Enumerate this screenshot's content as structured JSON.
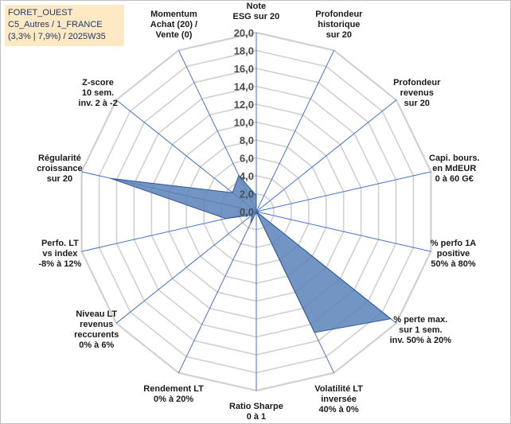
{
  "info": {
    "line1": "FORET_OUEST",
    "line2": "C5_Autres / 1_FRANCE",
    "line3": "(3,3% | 7,9%) / 2025W35"
  },
  "chart_data": {
    "type": "radar",
    "title": "",
    "rlim": [
      0,
      20
    ],
    "ticks": [
      "0,0",
      "2,0",
      "4,0",
      "6,0",
      "8,0",
      "10,0",
      "12,0",
      "14,0",
      "16,0",
      "18,0",
      "20,0"
    ],
    "grid": true,
    "fill_color": "#5a82b8",
    "line_color": "#2f5597",
    "axis_color": "#4472c4",
    "grid_color": "#d0d0d0",
    "axes": [
      {
        "label": [
          "Note",
          "ESG sur 20"
        ],
        "value": 1.8
      },
      {
        "label": [
          "Profondeur",
          "historique",
          "sur 20"
        ],
        "value": 0.0
      },
      {
        "label": [
          "Profondeur",
          "revenus",
          "sur 20"
        ],
        "value": 0.0
      },
      {
        "label": [
          "Capi. bours.",
          "en MdEUR",
          "0 à 60 G€"
        ],
        "value": 0.0
      },
      {
        "label": [
          "% perfo 1A",
          "positive",
          "50% à 80%"
        ],
        "value": 0.0
      },
      {
        "label": [
          "% perte max.",
          "sur 1 sem.",
          "inv. 50% à 20%"
        ],
        "value": 19.2
      },
      {
        "label": [
          "Volatilité LT",
          "inversée",
          "40% à 0%"
        ],
        "value": 15.0
      },
      {
        "label": [
          "Ratio Sharpe",
          "0 à 1"
        ],
        "value": 0.0
      },
      {
        "label": [
          "Rendement LT",
          "0% à 20%"
        ],
        "value": 1.5
      },
      {
        "label": [
          "Niveau LT",
          "revenus",
          "reccurents",
          "0% à 6%"
        ],
        "value": 0.6
      },
      {
        "label": [
          "Perfo. LT",
          "vs index",
          "-8% à 12%"
        ],
        "value": 3.5
      },
      {
        "label": [
          "Régularité",
          "croissance",
          "sur 20"
        ],
        "value": 16.7
      },
      {
        "label": [
          "Z-score",
          "10 sem.",
          "inv. 2 à -2"
        ],
        "value": 3.4
      },
      {
        "label": [
          "Momentum",
          "Achat (20) /",
          "Vente (0)"
        ],
        "value": 4.5
      }
    ]
  }
}
